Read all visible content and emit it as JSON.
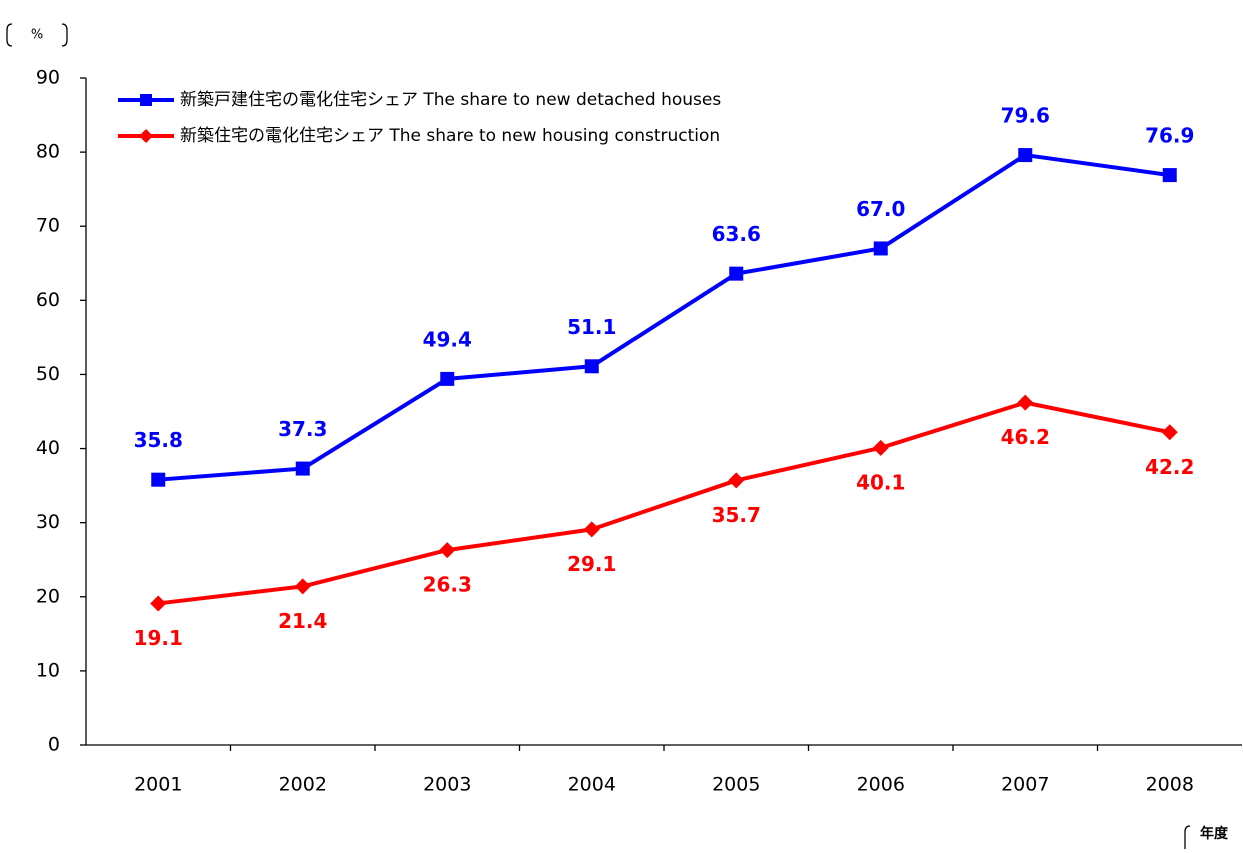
{
  "chart_data": {
    "type": "line",
    "y_unit": "%",
    "x_unit": "年度",
    "categories": [
      "2001",
      "2002",
      "2003",
      "2004",
      "2005",
      "2006",
      "2007",
      "2008"
    ],
    "series": [
      {
        "name": "新築戸建住宅の電化住宅シェア The share to new detached houses",
        "color": "#0000ff",
        "marker": "square",
        "values": [
          35.8,
          37.3,
          49.4,
          51.1,
          63.6,
          67.0,
          79.6,
          76.9
        ],
        "value_labels": [
          "35.8",
          "37.3",
          "49.4",
          "51.1",
          "63.6",
          "67.0",
          "79.6",
          "76.9"
        ]
      },
      {
        "name": "新築住宅の電化住宅シェア The share to new housing construction",
        "color": "#ff0000",
        "marker": "diamond",
        "values": [
          19.1,
          21.4,
          26.3,
          29.1,
          35.7,
          40.1,
          46.2,
          42.2
        ],
        "value_labels": [
          "19.1",
          "21.4",
          "26.3",
          "29.1",
          "35.7",
          "40.1",
          "46.2",
          "42.2"
        ]
      }
    ],
    "ylim": [
      0,
      90
    ],
    "yticks": [
      0,
      10,
      20,
      30,
      40,
      50,
      60,
      70,
      80,
      90
    ],
    "grid": false,
    "legend": "upper left"
  }
}
